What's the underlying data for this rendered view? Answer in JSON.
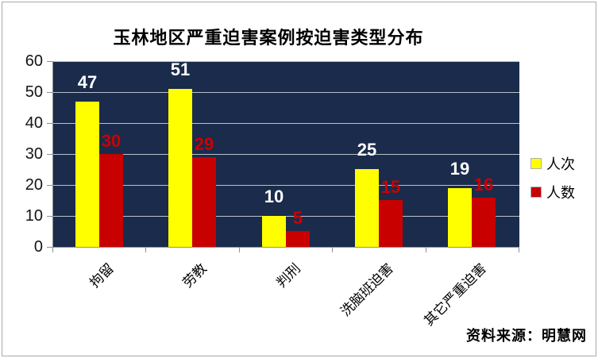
{
  "source_note": "资料来源：明慧网",
  "chart_data": {
    "type": "bar",
    "title": "玉林地区严重迫害案例按迫害类型分布",
    "categories": [
      "拘留",
      "劳教",
      "判刑",
      "洗脑班迫害",
      "其它严重迫害"
    ],
    "series": [
      {
        "name": "人次",
        "color": "#FFFF00",
        "label_color": "#FFFFFF",
        "values": [
          47,
          51,
          10,
          25,
          19
        ]
      },
      {
        "name": "人数",
        "color": "#C80000",
        "label_color": "#CC0000",
        "values": [
          30,
          29,
          5,
          15,
          16
        ]
      }
    ],
    "xlabel": "",
    "ylabel": "",
    "ylim": [
      0,
      60
    ],
    "yticks": [
      0,
      10,
      20,
      30,
      40,
      50,
      60
    ],
    "grid": true,
    "legend_position": "right",
    "plot_bg": "#1B2B4B",
    "gridline_color": "#B9C0CB",
    "axis_color": "#8A8F98"
  }
}
